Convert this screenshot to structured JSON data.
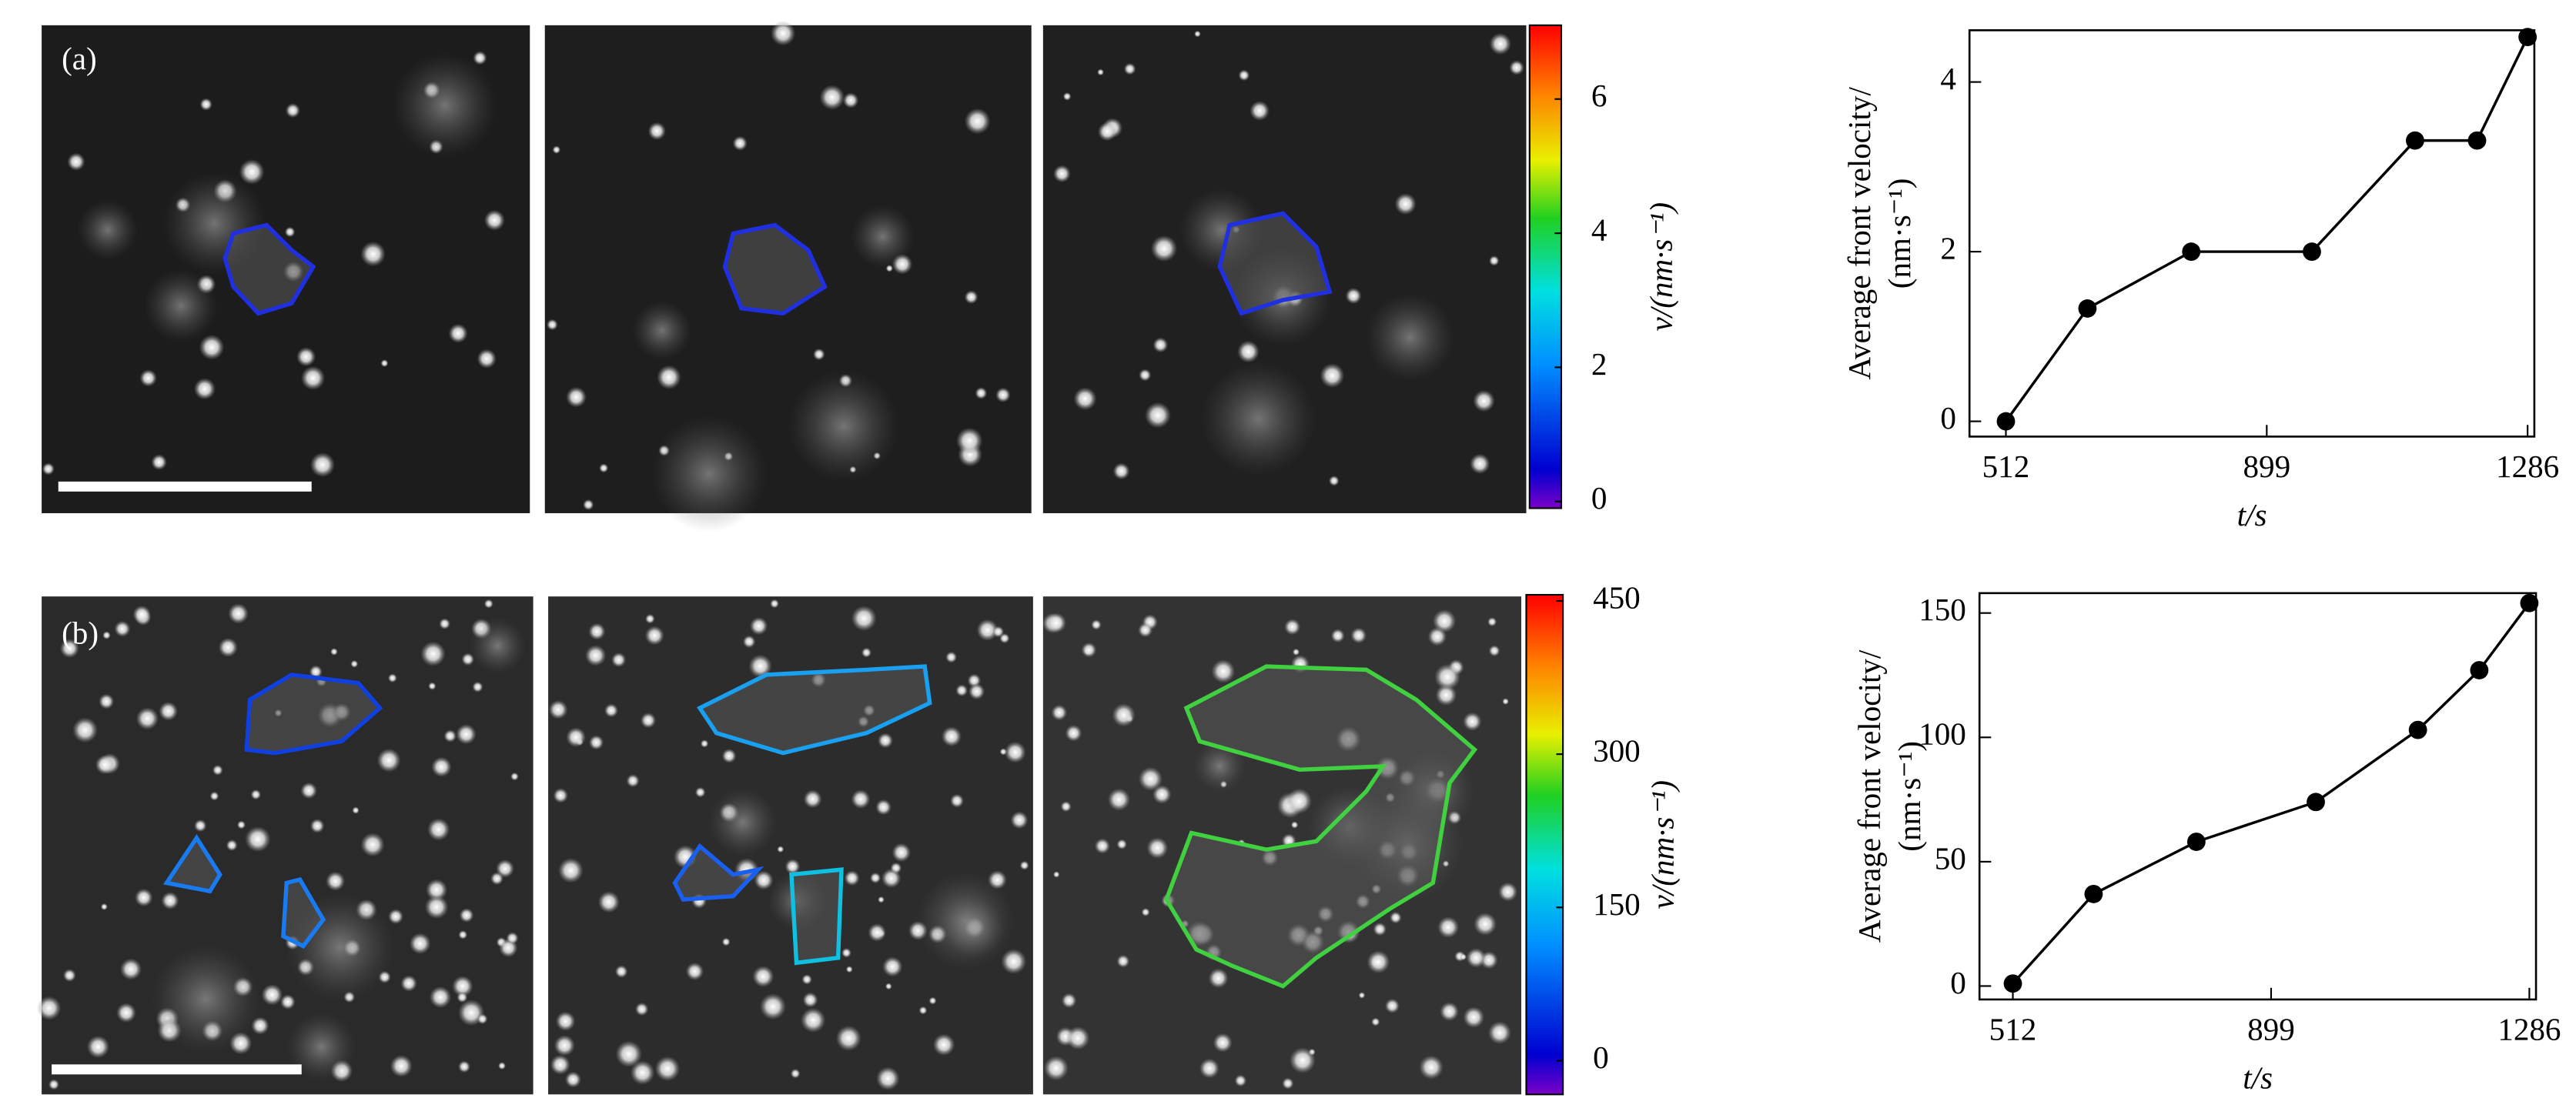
{
  "panels": [
    {
      "label": "(a)",
      "colorbar": {
        "label": "v/(nm·s⁻¹)",
        "lim": [
          -0.1,
          7.1
        ],
        "ticks": [
          0,
          2,
          4,
          6
        ]
      }
    },
    {
      "label": "(b)",
      "colorbar": {
        "label": "v/(nm·s⁻¹)",
        "lim": [
          -33,
          456
        ],
        "ticks": [
          0,
          150,
          300,
          450
        ]
      }
    }
  ],
  "chart_data": [
    {
      "type": "line",
      "ylabel": [
        "Average front velocity/",
        "(nm·s⁻¹)"
      ],
      "xlabel": "t/s",
      "x": [
        512,
        633,
        787,
        966,
        1119,
        1211,
        1286
      ],
      "values": [
        0,
        1.33,
        2,
        2,
        3.31,
        3.31,
        4.53
      ],
      "xlim": [
        458,
        1296
      ],
      "ylim": [
        -0.18,
        4.61
      ],
      "xticks": [
        512,
        899,
        1286
      ],
      "yticks": [
        0,
        2,
        4
      ],
      "color": "#000000"
    },
    {
      "type": "line",
      "ylabel": [
        "Average front velocity/",
        "(nm·s⁻¹)"
      ],
      "xlabel": "t/s",
      "x": [
        512,
        633,
        787,
        966,
        1119,
        1211,
        1286
      ],
      "values": [
        1,
        37,
        58,
        74,
        103,
        127,
        154
      ],
      "xlim": [
        462,
        1296
      ],
      "ylim": [
        -5.4,
        158
      ],
      "xticks": [
        512,
        899,
        1286
      ],
      "yticks": [
        0,
        50,
        100,
        150
      ],
      "color": "#000000"
    }
  ]
}
